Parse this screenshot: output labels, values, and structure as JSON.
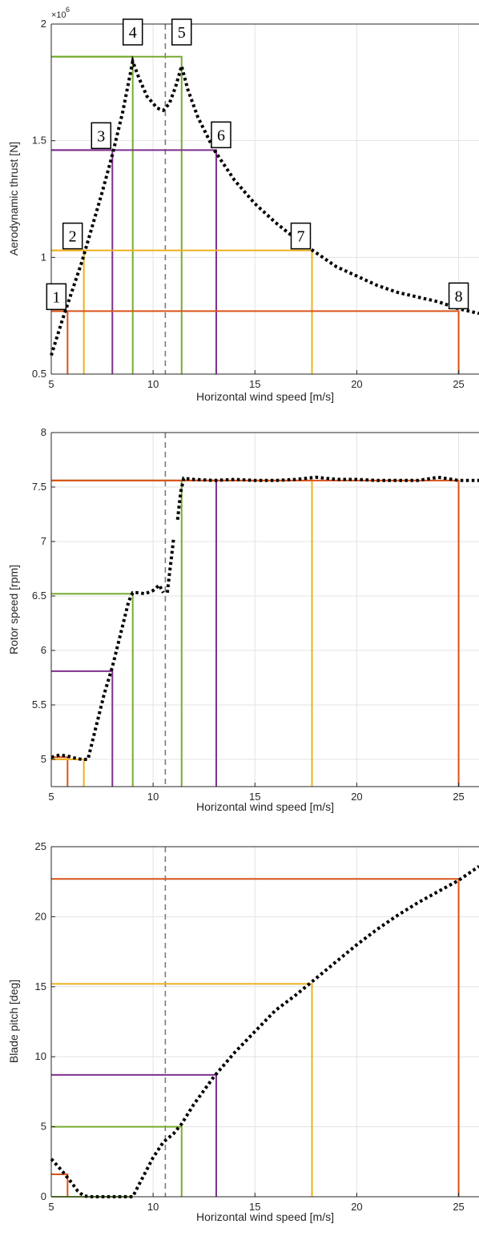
{
  "chart_data": [
    {
      "type": "line",
      "xlabel": "Horizontal wind speed [m/s]",
      "ylabel": "Aerodynamic thrust [N]",
      "y_exponent_base": "×10",
      "y_exponent_power": "6",
      "xlim": [
        5,
        26
      ],
      "ylim": [
        0.5,
        2.0
      ],
      "xticks": [
        5,
        10,
        15,
        20,
        25
      ],
      "yticks": [
        0.5,
        1,
        1.5,
        2
      ],
      "ytick_labels": [
        "0.5",
        "1",
        "1.5",
        "2"
      ],
      "grid": true,
      "rated_speed_dashed_x": 10.6,
      "curve": {
        "style": "dotted",
        "color": "#000000",
        "x": [
          5.0,
          5.5,
          6.0,
          6.5,
          7.0,
          7.5,
          8.0,
          8.5,
          9.0,
          9.3,
          9.7,
          10.2,
          10.5,
          10.8,
          11.1,
          11.4,
          11.7,
          12.2,
          13.0,
          14.0,
          15.0,
          16.0,
          17.0,
          18.0,
          19.0,
          20.0,
          21.0,
          22.0,
          23.0,
          24.0,
          25.0,
          26.0
        ],
        "y": [
          0.58,
          0.72,
          0.85,
          0.98,
          1.13,
          1.28,
          1.44,
          1.62,
          1.84,
          1.77,
          1.69,
          1.64,
          1.63,
          1.66,
          1.73,
          1.82,
          1.72,
          1.6,
          1.46,
          1.33,
          1.23,
          1.15,
          1.08,
          1.02,
          0.96,
          0.92,
          0.88,
          0.85,
          0.83,
          0.81,
          0.78,
          0.76
        ]
      },
      "operating_points": [
        {
          "id": "1",
          "x": 5.8,
          "y": 0.77,
          "color": "#D95319"
        },
        {
          "id": "2",
          "x": 6.6,
          "y": 1.03,
          "color": "#EDB120"
        },
        {
          "id": "3",
          "x": 8.0,
          "y": 1.46,
          "color": "#7E2F8E"
        },
        {
          "id": "4",
          "x": 9.0,
          "y": 1.86,
          "color": "#77AC30"
        },
        {
          "id": "5",
          "x": 11.4,
          "y": 1.86,
          "color": "#77AC30"
        },
        {
          "id": "6",
          "x": 13.1,
          "y": 1.46,
          "color": "#7E2F8E"
        },
        {
          "id": "7",
          "x": 17.8,
          "y": 1.03,
          "color": "#EDB120"
        },
        {
          "id": "8",
          "x": 25.0,
          "y": 0.77,
          "color": "#D95319"
        }
      ]
    },
    {
      "type": "line",
      "xlabel": "Horizontal wind speed [m/s]",
      "ylabel": "Rotor speed [rpm]",
      "xlim": [
        5,
        26
      ],
      "ylim": [
        4.75,
        8.0
      ],
      "xticks": [
        5,
        10,
        15,
        20,
        25
      ],
      "yticks": [
        5,
        5.5,
        6,
        6.5,
        7,
        7.5,
        8
      ],
      "ytick_labels": [
        "5",
        "5.5",
        "6",
        "6.5",
        "7",
        "7.5",
        "8"
      ],
      "grid": true,
      "rated_speed_dashed_x": 10.6,
      "curve": {
        "style": "dotted",
        "color": "#000000",
        "segments": [
          {
            "x": [
              5.0,
              5.4,
              5.8,
              6.2,
              6.5,
              6.8,
              7.2,
              7.6,
              8.0,
              8.4,
              8.8,
              9.0,
              9.3,
              9.6,
              10.0,
              10.3,
              10.5
            ],
            "y": [
              5.02,
              5.04,
              5.03,
              5.01,
              5.0,
              5.0,
              5.3,
              5.6,
              5.85,
              6.15,
              6.45,
              6.53,
              6.53,
              6.52,
              6.55,
              6.6,
              6.53
            ]
          },
          {
            "x": [
              10.7,
              10.8,
              10.9,
              11.0
            ],
            "y": [
              6.53,
              6.7,
              6.85,
              7.02
            ]
          },
          {
            "x": [
              11.2,
              11.35,
              11.5,
              12.0,
              13.0,
              14.0,
              15.0,
              16.0,
              17.0,
              18.0,
              19.0,
              20.0,
              21.0,
              22.0,
              23.0,
              24.0,
              25.0,
              26.0
            ],
            "y": [
              7.2,
              7.45,
              7.58,
              7.57,
              7.56,
              7.57,
              7.56,
              7.56,
              7.57,
              7.59,
              7.57,
              7.57,
              7.56,
              7.56,
              7.56,
              7.59,
              7.56,
              7.56
            ]
          }
        ]
      },
      "operating_points": [
        {
          "id": "1",
          "x": 5.8,
          "y": 5.02,
          "color": "#D95319"
        },
        {
          "id": "2",
          "x": 6.6,
          "y": 5.0,
          "color": "#EDB120"
        },
        {
          "id": "3",
          "x": 8.0,
          "y": 5.81,
          "color": "#7E2F8E"
        },
        {
          "id": "4",
          "x": 9.0,
          "y": 6.52,
          "color": "#77AC30"
        },
        {
          "id": "5",
          "x": 11.4,
          "y": 7.56,
          "color": "#77AC30"
        },
        {
          "id": "6",
          "x": 13.1,
          "y": 7.56,
          "color": "#7E2F8E"
        },
        {
          "id": "7",
          "x": 17.8,
          "y": 7.56,
          "color": "#EDB120"
        },
        {
          "id": "8",
          "x": 25.0,
          "y": 7.56,
          "color": "#D95319"
        }
      ]
    },
    {
      "type": "line",
      "xlabel": "Horizontal wind speed [m/s]",
      "ylabel": "Blade pitch [deg]",
      "xlim": [
        5,
        26
      ],
      "ylim": [
        0,
        25
      ],
      "xticks": [
        5,
        10,
        15,
        20,
        25
      ],
      "yticks": [
        0,
        5,
        10,
        15,
        20,
        25
      ],
      "ytick_labels": [
        "0",
        "5",
        "10",
        "15",
        "20",
        "25"
      ],
      "grid": true,
      "rated_speed_dashed_x": 10.6,
      "curve": {
        "style": "dotted",
        "color": "#000000",
        "x": [
          5.0,
          5.5,
          6.0,
          6.3,
          6.6,
          7.0,
          8.0,
          9.0,
          9.5,
          10.0,
          10.5,
          11.0,
          11.4,
          12.0,
          13.0,
          14.0,
          15.0,
          16.0,
          17.0,
          18.0,
          19.0,
          20.0,
          21.0,
          22.0,
          23.0,
          24.0,
          25.0,
          26.0
        ],
        "y": [
          2.7,
          1.9,
          1.0,
          0.4,
          0.05,
          0.0,
          0.0,
          0.0,
          1.4,
          2.8,
          3.9,
          4.5,
          5.2,
          6.6,
          8.6,
          10.3,
          11.8,
          13.3,
          14.4,
          15.6,
          16.8,
          18.0,
          19.1,
          20.1,
          21.0,
          21.8,
          22.6,
          23.6
        ]
      },
      "operating_points": [
        {
          "id": "1",
          "x": 5.8,
          "y": 1.6,
          "color": "#D95319"
        },
        {
          "id": "2",
          "x": 6.6,
          "y": 0.0,
          "color": "#EDB120"
        },
        {
          "id": "3",
          "x": 8.0,
          "y": 0.0,
          "color": "#7E2F8E"
        },
        {
          "id": "4",
          "x": 9.0,
          "y": 0.0,
          "color": "#77AC30"
        },
        {
          "id": "5",
          "x": 11.4,
          "y": 5.0,
          "color": "#77AC30"
        },
        {
          "id": "6",
          "x": 13.1,
          "y": 8.7,
          "color": "#7E2F8E"
        },
        {
          "id": "7",
          "x": 17.8,
          "y": 15.2,
          "color": "#EDB120"
        },
        {
          "id": "8",
          "x": 25.0,
          "y": 22.7,
          "color": "#D95319"
        }
      ]
    }
  ]
}
